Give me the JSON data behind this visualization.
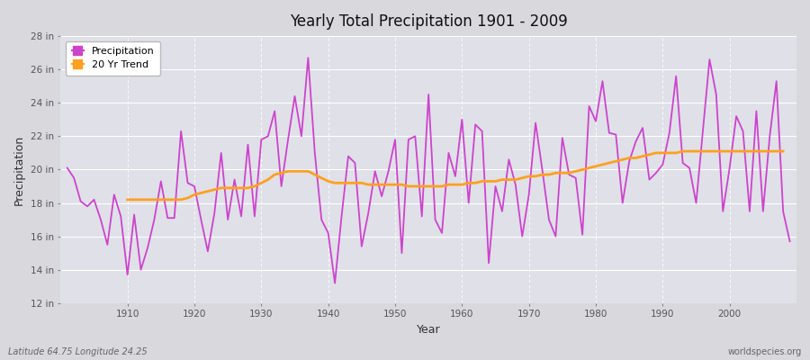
{
  "title": "Yearly Total Precipitation 1901 - 2009",
  "xlabel": "Year",
  "ylabel": "Precipitation",
  "lat_lon_label": "Latitude 64.75 Longitude 24.25",
  "source_label": "worldspecies.org",
  "precip_color": "#CC44CC",
  "trend_color": "#FFA020",
  "bg_color": "#D8D8DD",
  "plot_bg_color": "#E0E0E8",
  "grid_color": "#FFFFFF",
  "ylim": [
    12,
    28
  ],
  "yticks": [
    12,
    14,
    16,
    18,
    20,
    22,
    24,
    26,
    28
  ],
  "ytick_labels": [
    "12 in",
    "14 in",
    "16 in",
    "18 in",
    "20 in",
    "22 in",
    "24 in",
    "26 in",
    "28 in"
  ],
  "years": [
    1901,
    1902,
    1903,
    1904,
    1905,
    1906,
    1907,
    1908,
    1909,
    1910,
    1911,
    1912,
    1913,
    1914,
    1915,
    1916,
    1917,
    1918,
    1919,
    1920,
    1921,
    1922,
    1923,
    1924,
    1925,
    1926,
    1927,
    1928,
    1929,
    1930,
    1931,
    1932,
    1933,
    1934,
    1935,
    1936,
    1937,
    1938,
    1939,
    1940,
    1941,
    1942,
    1943,
    1944,
    1945,
    1946,
    1947,
    1948,
    1949,
    1950,
    1951,
    1952,
    1953,
    1954,
    1955,
    1956,
    1957,
    1958,
    1959,
    1960,
    1961,
    1962,
    1963,
    1964,
    1965,
    1966,
    1967,
    1968,
    1969,
    1970,
    1971,
    1972,
    1973,
    1974,
    1975,
    1976,
    1977,
    1978,
    1979,
    1980,
    1981,
    1982,
    1983,
    1984,
    1985,
    1986,
    1987,
    1988,
    1989,
    1990,
    1991,
    1992,
    1993,
    1994,
    1995,
    1996,
    1997,
    1998,
    1999,
    2000,
    2001,
    2002,
    2003,
    2004,
    2005,
    2006,
    2007,
    2008,
    2009
  ],
  "precip": [
    20.1,
    19.5,
    18.1,
    17.8,
    18.2,
    17.0,
    15.5,
    18.5,
    17.2,
    13.7,
    17.3,
    14.0,
    15.3,
    17.0,
    19.3,
    17.1,
    17.1,
    22.3,
    19.2,
    19.0,
    17.0,
    15.1,
    17.4,
    21.0,
    17.0,
    19.4,
    17.2,
    21.5,
    17.2,
    21.8,
    22.0,
    23.5,
    19.0,
    21.8,
    24.4,
    22.0,
    26.7,
    21.0,
    17.0,
    16.2,
    13.2,
    17.2,
    20.8,
    20.4,
    15.4,
    17.4,
    19.9,
    18.4,
    19.9,
    21.8,
    15.0,
    21.8,
    22.0,
    17.2,
    24.5,
    17.0,
    16.2,
    21.0,
    19.6,
    23.0,
    18.0,
    22.7,
    22.3,
    14.4,
    19.0,
    17.5,
    20.6,
    19.1,
    16.0,
    18.5,
    22.8,
    20.0,
    17.0,
    16.0,
    21.9,
    19.7,
    19.5,
    16.1,
    23.8,
    22.9,
    25.3,
    22.2,
    22.1,
    18.0,
    20.5,
    21.7,
    22.5,
    19.4,
    19.8,
    20.3,
    22.2,
    25.6,
    20.4,
    20.1,
    18.0,
    22.3,
    26.6,
    24.5,
    17.5,
    20.1,
    23.2,
    22.3,
    17.5,
    23.5,
    17.5,
    22.0,
    25.3,
    17.5,
    15.7
  ],
  "trend": [
    null,
    null,
    null,
    null,
    null,
    null,
    null,
    null,
    null,
    18.2,
    18.2,
    18.2,
    18.2,
    18.2,
    18.2,
    18.2,
    18.2,
    18.2,
    18.3,
    18.5,
    18.6,
    18.7,
    18.8,
    18.9,
    18.9,
    18.9,
    18.9,
    18.9,
    19.0,
    19.2,
    19.4,
    19.7,
    19.8,
    19.9,
    19.9,
    19.9,
    19.9,
    19.7,
    19.5,
    19.3,
    19.2,
    19.2,
    19.2,
    19.2,
    19.2,
    19.1,
    19.1,
    19.1,
    19.1,
    19.1,
    19.1,
    19.0,
    19.0,
    19.0,
    19.0,
    19.0,
    19.0,
    19.1,
    19.1,
    19.1,
    19.2,
    19.2,
    19.3,
    19.3,
    19.3,
    19.4,
    19.4,
    19.4,
    19.5,
    19.6,
    19.6,
    19.7,
    19.7,
    19.8,
    19.8,
    19.8,
    19.9,
    20.0,
    20.1,
    20.2,
    20.3,
    20.4,
    20.5,
    20.6,
    20.7,
    20.7,
    20.8,
    20.9,
    21.0,
    21.0,
    21.0,
    21.0,
    21.1,
    21.1,
    21.1,
    21.1,
    21.1,
    21.1,
    21.1,
    21.1,
    21.1,
    21.1,
    21.1,
    21.1,
    21.1,
    21.1,
    21.1,
    21.1
  ]
}
